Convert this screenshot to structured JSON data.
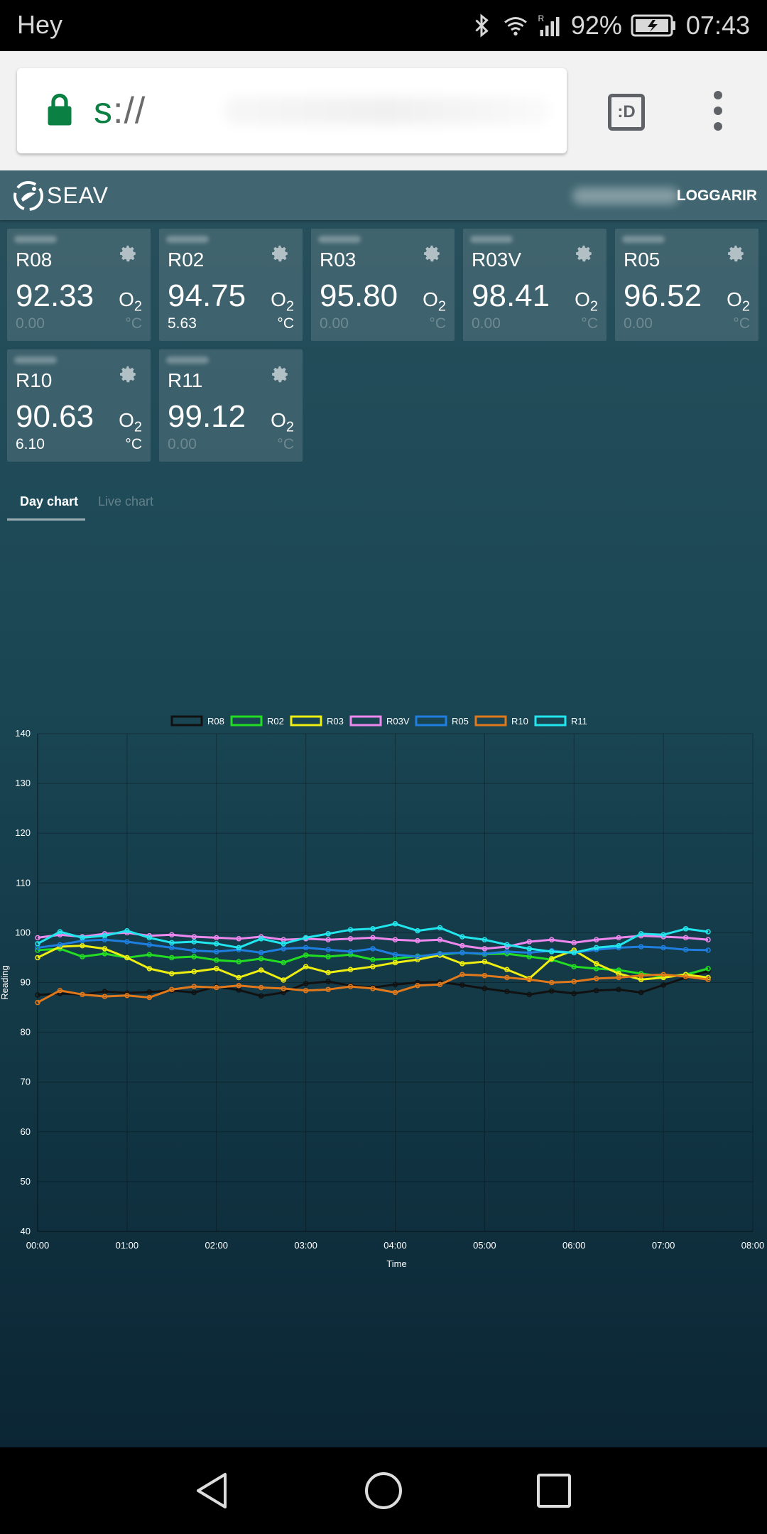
{
  "status_bar": {
    "carrier": "Hey",
    "battery": "92%",
    "time": "07:43",
    "roaming_label": "R",
    "icons": [
      "bluetooth-icon",
      "wifi-icon",
      "signal-icon",
      "battery-charging-icon"
    ]
  },
  "browser": {
    "url_scheme": "s",
    "url_rest": "://",
    "tab_switcher_label": ":D",
    "icons": [
      "lock-icon",
      "tab-switcher-icon",
      "overflow-menu-icon"
    ]
  },
  "app": {
    "title": "SEAV",
    "logout_label": "LOGGARIR",
    "accent": "#416671"
  },
  "cards": [
    {
      "name": "R08",
      "o2": "92.33",
      "temp": "0.00",
      "o2_unit": "O",
      "o2_sub": "2",
      "temp_unit": "°C",
      "temp_active": false
    },
    {
      "name": "R02",
      "o2": "94.75",
      "temp": "5.63",
      "o2_unit": "O",
      "o2_sub": "2",
      "temp_unit": "°C",
      "temp_active": true
    },
    {
      "name": "R03",
      "o2": "95.80",
      "temp": "0.00",
      "o2_unit": "O",
      "o2_sub": "2",
      "temp_unit": "°C",
      "temp_active": false
    },
    {
      "name": "R03V",
      "o2": "98.41",
      "temp": "0.00",
      "o2_unit": "O",
      "o2_sub": "2",
      "temp_unit": "°C",
      "temp_active": false
    },
    {
      "name": "R05",
      "o2": "96.52",
      "temp": "0.00",
      "o2_unit": "O",
      "o2_sub": "2",
      "temp_unit": "°C",
      "temp_active": false
    },
    {
      "name": "R10",
      "o2": "90.63",
      "temp": "6.10",
      "o2_unit": "O",
      "o2_sub": "2",
      "temp_unit": "°C",
      "temp_active": true
    },
    {
      "name": "R11",
      "o2": "99.12",
      "temp": "0.00",
      "o2_unit": "O",
      "o2_sub": "2",
      "temp_unit": "°C",
      "temp_active": false
    }
  ],
  "tabs": {
    "day": "Day chart",
    "live": "Live chart"
  },
  "chart_data": {
    "type": "line",
    "xlabel": "Time",
    "ylabel": "Reading",
    "ylim": [
      40,
      140
    ],
    "yticks": [
      40,
      50,
      60,
      70,
      80,
      90,
      100,
      110,
      120,
      130,
      140
    ],
    "xticks": [
      "00:00",
      "01:00",
      "02:00",
      "03:00",
      "04:00",
      "05:00",
      "06:00",
      "07:00",
      "08:00"
    ],
    "xlim_hours": [
      0,
      8
    ],
    "legend_position": "top-center",
    "grid": true,
    "series": [
      {
        "name": "R08",
        "color": "#111111",
        "x": [
          0,
          0.25,
          0.5,
          0.75,
          1,
          1.25,
          1.5,
          1.75,
          2,
          2.25,
          2.5,
          2.75,
          3,
          3.25,
          3.5,
          3.75,
          4,
          4.25,
          4.5,
          4.75,
          5,
          5.25,
          5.5,
          5.75,
          6,
          6.25,
          6.5,
          6.75,
          7,
          7.25,
          7.5
        ],
        "y": [
          87.5,
          87.8,
          87.6,
          88.2,
          87.9,
          88.1,
          88.4,
          88.0,
          89.2,
          88.5,
          87.3,
          88.0,
          89.8,
          90.2,
          89.4,
          89.0,
          89.6,
          90.0,
          90.1,
          89.5,
          88.8,
          88.2,
          87.6,
          88.3,
          87.8,
          88.4,
          88.6,
          88.0,
          89.5,
          91.0,
          92.3
        ]
      },
      {
        "name": "R02",
        "color": "#22dd22",
        "x": [
          0,
          0.25,
          0.5,
          0.75,
          1,
          1.25,
          1.5,
          1.75,
          2,
          2.25,
          2.5,
          2.75,
          3,
          3.25,
          3.5,
          3.75,
          4,
          4.25,
          4.5,
          4.75,
          5,
          5.25,
          5.5,
          5.75,
          6,
          6.25,
          6.5,
          6.75,
          7,
          7.25,
          7.5
        ],
        "y": [
          96.5,
          96.8,
          95.2,
          95.8,
          95.0,
          95.6,
          95.0,
          95.2,
          94.5,
          94.2,
          94.8,
          94.0,
          95.5,
          95.2,
          95.6,
          94.6,
          94.8,
          95.3,
          95.6,
          96.0,
          95.7,
          95.8,
          95.2,
          94.6,
          93.2,
          92.8,
          92.5,
          91.8,
          91.2,
          91.6,
          92.8
        ]
      },
      {
        "name": "R03",
        "color": "#eeee11",
        "x": [
          0,
          0.25,
          0.5,
          0.75,
          1,
          1.25,
          1.5,
          1.75,
          2,
          2.25,
          2.5,
          2.75,
          3,
          3.25,
          3.5,
          3.75,
          4,
          4.25,
          4.5,
          4.75,
          5,
          5.25,
          5.5,
          5.75,
          6,
          6.25,
          6.5,
          6.75,
          7,
          7.25,
          7.5
        ],
        "y": [
          95.0,
          97.2,
          97.4,
          96.8,
          95.0,
          92.8,
          91.8,
          92.2,
          92.8,
          91.0,
          92.5,
          90.5,
          93.2,
          92.0,
          92.6,
          93.2,
          94.0,
          94.6,
          95.5,
          93.8,
          94.2,
          92.6,
          90.8,
          94.8,
          96.5,
          93.8,
          91.8,
          90.6,
          91.0,
          91.6,
          91.0
        ]
      },
      {
        "name": "R03V",
        "color": "#ee88ee",
        "x": [
          0,
          0.25,
          0.5,
          0.75,
          1,
          1.25,
          1.5,
          1.75,
          2,
          2.25,
          2.5,
          2.75,
          3,
          3.25,
          3.5,
          3.75,
          4,
          4.25,
          4.5,
          4.75,
          5,
          5.25,
          5.5,
          5.75,
          6,
          6.25,
          6.5,
          6.75,
          7,
          7.25,
          7.5
        ],
        "y": [
          99.0,
          99.6,
          99.2,
          99.8,
          100.0,
          99.4,
          99.6,
          99.2,
          99.0,
          98.8,
          99.2,
          98.6,
          98.8,
          98.6,
          98.8,
          99.0,
          98.6,
          98.4,
          98.6,
          97.4,
          96.8,
          97.2,
          98.2,
          98.6,
          98.0,
          98.6,
          99.0,
          99.4,
          99.2,
          99.0,
          98.6
        ]
      },
      {
        "name": "R05",
        "color": "#1e7fe0",
        "x": [
          0,
          0.25,
          0.5,
          0.75,
          1,
          1.25,
          1.5,
          1.75,
          2,
          2.25,
          2.5,
          2.75,
          3,
          3.25,
          3.5,
          3.75,
          4,
          4.25,
          4.5,
          4.75,
          5,
          5.25,
          5.5,
          5.75,
          6,
          6.25,
          6.5,
          6.75,
          7,
          7.25,
          7.5
        ],
        "y": [
          97.0,
          97.6,
          98.4,
          98.6,
          98.2,
          97.6,
          97.0,
          96.4,
          96.2,
          96.6,
          96.0,
          96.8,
          97.0,
          96.6,
          96.2,
          96.8,
          95.6,
          95.2,
          95.8,
          96.0,
          95.8,
          96.2,
          96.0,
          96.4,
          96.0,
          96.6,
          97.0,
          97.2,
          97.0,
          96.6,
          96.5
        ]
      },
      {
        "name": "R10",
        "color": "#e0781c",
        "x": [
          0,
          0.25,
          0.5,
          0.75,
          1,
          1.25,
          1.5,
          1.75,
          2,
          2.25,
          2.5,
          2.75,
          3,
          3.25,
          3.5,
          3.75,
          4,
          4.25,
          4.5,
          4.75,
          5,
          5.25,
          5.5,
          5.75,
          6,
          6.25,
          6.5,
          6.75,
          7,
          7.25,
          7.5
        ],
        "y": [
          86.0,
          88.4,
          87.6,
          87.2,
          87.4,
          87.0,
          88.6,
          89.2,
          89.0,
          89.4,
          89.0,
          88.8,
          88.4,
          88.6,
          89.2,
          88.8,
          88.0,
          89.4,
          89.6,
          91.6,
          91.4,
          91.0,
          90.6,
          90.0,
          90.2,
          90.8,
          91.0,
          91.4,
          91.6,
          91.2,
          90.6
        ]
      },
      {
        "name": "R11",
        "color": "#22e6ee",
        "x": [
          0,
          0.25,
          0.5,
          0.75,
          1,
          1.25,
          1.5,
          1.75,
          2,
          2.25,
          2.5,
          2.75,
          3,
          3.25,
          3.5,
          3.75,
          4,
          4.25,
          4.5,
          4.75,
          5,
          5.25,
          5.5,
          5.75,
          6,
          6.25,
          6.5,
          6.75,
          7,
          7.25,
          7.5
        ],
        "y": [
          97.8,
          100.2,
          99.0,
          99.4,
          100.4,
          99.0,
          98.0,
          98.2,
          97.8,
          97.0,
          98.8,
          97.8,
          99.0,
          99.8,
          100.6,
          100.8,
          101.8,
          100.4,
          101.0,
          99.2,
          98.6,
          97.6,
          96.8,
          96.2,
          96.0,
          97.0,
          97.4,
          99.8,
          99.6,
          100.8,
          100.2
        ]
      }
    ]
  },
  "nav": {
    "icons": [
      "back-icon",
      "home-icon",
      "recents-icon"
    ]
  }
}
